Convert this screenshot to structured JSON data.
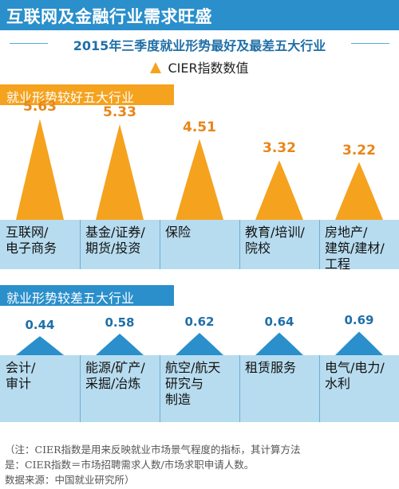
{
  "header": {
    "title": "互联网及金融行业需求旺盛",
    "subtitle": "2015年三季度就业形势最好及最差五大行业",
    "legend_label": "CIER指数数值"
  },
  "colors": {
    "band": "#2a8fcb",
    "good_band": "#f5a21e",
    "bad_band": "#2a8fcb",
    "good_mark": "#f5a21e",
    "bad_mark": "#2a8fcb",
    "good_value": "#e8861a",
    "bad_value": "#1f6fa8",
    "category_bg": "#b7dcef"
  },
  "chart_data": [
    {
      "type": "bar",
      "title": "就业形势较好五大行业",
      "categories": [
        "互联网/\n电子商务",
        "基金/证券/\n期货/投资",
        "保险",
        "教育/培训/\n院校",
        "房地产/\n建筑/建材/\n工程"
      ],
      "values": [
        5.63,
        5.33,
        4.51,
        3.32,
        3.22
      ],
      "value_labels": [
        "5.63",
        "5.33",
        "4.51",
        "3.32",
        "3.22"
      ],
      "series": [
        {
          "name": "CIER指数数值",
          "values": [
            5.63,
            5.33,
            4.51,
            3.32,
            3.22
          ]
        }
      ],
      "ylim": [
        0,
        6
      ],
      "grid": false,
      "legend": "top-center"
    },
    {
      "type": "bar",
      "title": "就业形势较差五大行业",
      "categories": [
        "会计/\n审计",
        "能源/矿产/\n采掘/冶炼",
        "航空/航天\n研究与\n制造",
        "租赁服务",
        "电气/电力/\n水利"
      ],
      "values": [
        0.44,
        0.58,
        0.62,
        0.64,
        0.69
      ],
      "value_labels": [
        "0.44",
        "0.58",
        "0.62",
        "0.64",
        "0.69"
      ],
      "series": [
        {
          "name": "CIER指数数值",
          "values": [
            0.44,
            0.58,
            0.62,
            0.64,
            0.69
          ]
        }
      ],
      "ylim": [
        0,
        6
      ],
      "grid": false,
      "legend": "top-center"
    }
  ],
  "footnote": "（注：CIER指数是用来反映就业市场景气程度的指标，其计算方法\n是：CIER指数＝市场招聘需求人数/市场求职申请人数。\n数据来源：中国就业研究所）"
}
